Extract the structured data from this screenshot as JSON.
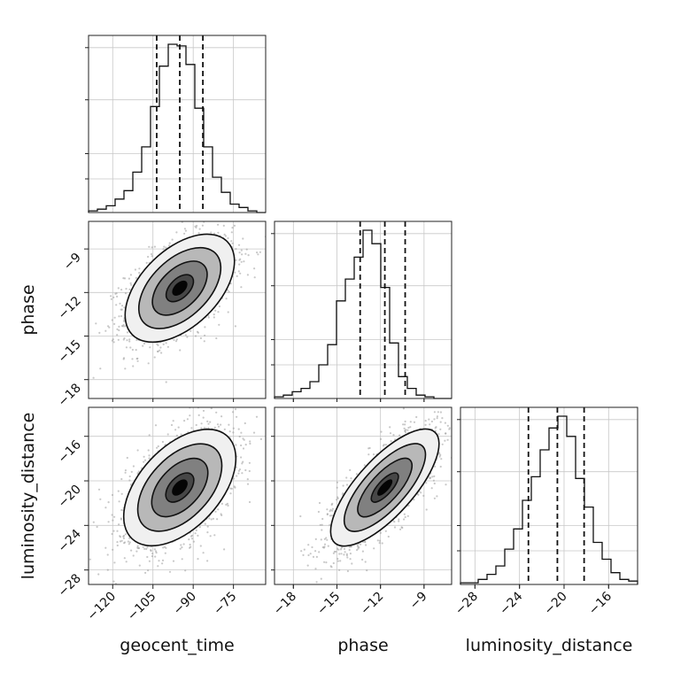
{
  "chart_data": {
    "type": "corner",
    "parameters": [
      "geocent_time",
      "phase",
      "luminosity_distance"
    ],
    "axis_labels": {
      "geocent_time": "geocent_time",
      "phase": "phase",
      "luminosity_distance": "luminosity_distance"
    },
    "ranges": {
      "geocent_time": [
        -129,
        -63
      ],
      "phase": [
        -19.3,
        -7.1
      ],
      "luminosity_distance": [
        -29.3,
        -13.4
      ]
    },
    "ticks": {
      "geocent_time": [
        -120,
        -105,
        -90,
        -75
      ],
      "phase": [
        -18,
        -15,
        -12,
        -9
      ],
      "luminosity_distance": [
        -28,
        -24,
        -20,
        -16
      ]
    },
    "tick_labels": {
      "geocent_time": [
        "−120",
        "−105",
        "−90",
        "−75"
      ],
      "phase": [
        "−18",
        "−15",
        "−12",
        "−9"
      ],
      "luminosity_distance": [
        "−28",
        "−24",
        "−20",
        "−16"
      ]
    },
    "means": {
      "geocent_time": -95,
      "phase": -11.7,
      "luminosity_distance": -20.6
    },
    "std_devs": {
      "geocent_time": 10,
      "phase": 1.8,
      "luminosity_distance": 2.6
    },
    "quantiles": {
      "geocent_time": [
        -103.6,
        -95.0,
        -86.4
      ],
      "phase": [
        -13.4,
        -11.7,
        -10.3
      ],
      "luminosity_distance": [
        -23.2,
        -20.6,
        -18.2
      ]
    },
    "correlations": {
      "phase|geocent_time": 0.5,
      "luminosity_distance|geocent_time": 0.5,
      "luminosity_distance|phase": 0.75
    },
    "histogram_heights": {
      "geocent_time": [
        0.01,
        0.02,
        0.04,
        0.08,
        0.13,
        0.24,
        0.39,
        0.63,
        0.87,
        1.0,
        0.99,
        0.88,
        0.62,
        0.39,
        0.21,
        0.12,
        0.05,
        0.03,
        0.01,
        0.0
      ],
      "phase": [
        0.01,
        0.02,
        0.04,
        0.06,
        0.1,
        0.2,
        0.32,
        0.58,
        0.71,
        0.84,
        1.0,
        0.92,
        0.66,
        0.33,
        0.13,
        0.06,
        0.02,
        0.01,
        0.0,
        0.0
      ],
      "luminosity_distance": [
        0.01,
        0.01,
        0.03,
        0.06,
        0.11,
        0.21,
        0.33,
        0.5,
        0.64,
        0.8,
        0.93,
        1.0,
        0.88,
        0.63,
        0.46,
        0.25,
        0.15,
        0.07,
        0.03,
        0.02
      ]
    },
    "histogram_bins": 20,
    "scatter_sample_count": 1800,
    "contour_levels_sigma": [
      0.5,
      1.0,
      1.5,
      2.0
    ],
    "grid": true,
    "colors": {
      "line": "#111111",
      "scatter": "#9a9a9a",
      "density_dark": "#000000",
      "density_light": "#ffffff",
      "grid": "#c8c8c8"
    }
  }
}
